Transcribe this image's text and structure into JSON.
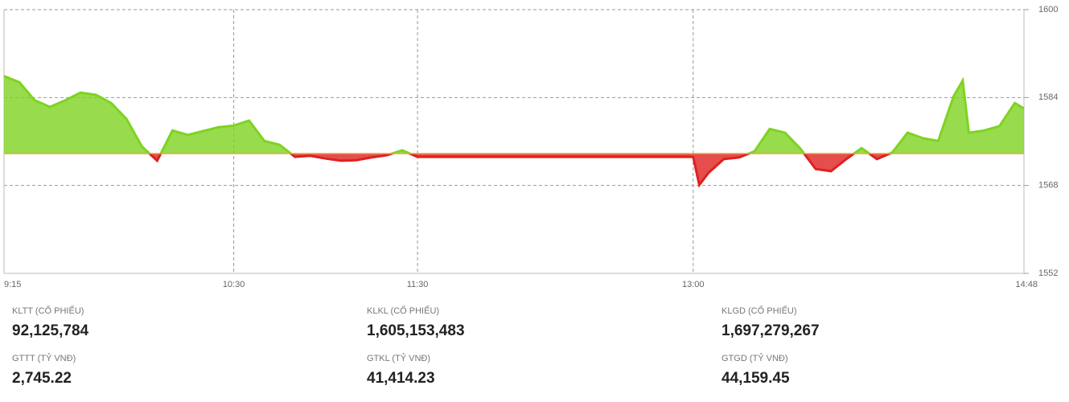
{
  "chart_data": {
    "type": "area",
    "x": [
      "9:15",
      "9:20",
      "9:25",
      "9:30",
      "9:35",
      "9:40",
      "9:45",
      "9:50",
      "9:55",
      "10:00",
      "10:05",
      "10:10",
      "10:15",
      "10:20",
      "10:25",
      "10:30",
      "10:35",
      "10:40",
      "10:45",
      "10:50",
      "10:55",
      "11:00",
      "11:05",
      "11:10",
      "11:15",
      "11:20",
      "11:25",
      "11:30",
      "13:00",
      "13:02",
      "13:05",
      "13:10",
      "13:15",
      "13:20",
      "13:25",
      "13:30",
      "13:35",
      "13:40",
      "13:45",
      "13:50",
      "13:55",
      "14:00",
      "14:05",
      "14:10",
      "14:15",
      "14:20",
      "14:25",
      "14:28",
      "14:30",
      "14:35",
      "14:40",
      "14:45",
      "14:48"
    ],
    "values": [
      1587.9,
      1586.8,
      1583.5,
      1582.3,
      1583.5,
      1584.9,
      1584.5,
      1583.0,
      1580.1,
      1575.1,
      1572.5,
      1578.0,
      1577.2,
      1577.9,
      1578.6,
      1578.9,
      1579.8,
      1576.1,
      1575.4,
      1573.2,
      1573.4,
      1572.9,
      1572.5,
      1572.6,
      1573.1,
      1573.5,
      1574.4,
      1573.2,
      1573.2,
      1568.1,
      1570.3,
      1572.8,
      1573.1,
      1574.2,
      1578.3,
      1577.6,
      1574.7,
      1571.0,
      1570.6,
      1572.8,
      1574.8,
      1572.8,
      1574.0,
      1577.6,
      1576.6,
      1576.1,
      1584.2,
      1587.1,
      1577.6,
      1578.0,
      1578.8,
      1583.0,
      1582.0
    ],
    "reference": 1573.8,
    "up_color": "#7ed321",
    "down_color": "#e02020",
    "reference_color": "#e8a33d",
    "xlim": [
      "9:15",
      "14:48"
    ],
    "xticks": [
      "9:15",
      "10:30",
      "11:30",
      "13:00",
      "14:48"
    ],
    "ylim": [
      1552,
      1600
    ],
    "yticks": [
      1552,
      1568,
      1584,
      1600
    ],
    "grid": true
  },
  "stats": [
    {
      "label": "KLTT (CỔ PHIẾU)",
      "value": "92,125,784"
    },
    {
      "label": "KLKL (CỔ PHIẾU)",
      "value": "1,605,153,483"
    },
    {
      "label": "KLGD (CỔ PHIẾU)",
      "value": "1,697,279,267"
    },
    {
      "label": "GTTT (TỶ VNĐ)",
      "value": "2,745.22"
    },
    {
      "label": "GTKL (TỶ VNĐ)",
      "value": "41,414.23"
    },
    {
      "label": "GTGD (TỶ VNĐ)",
      "value": "44,159.45"
    }
  ]
}
